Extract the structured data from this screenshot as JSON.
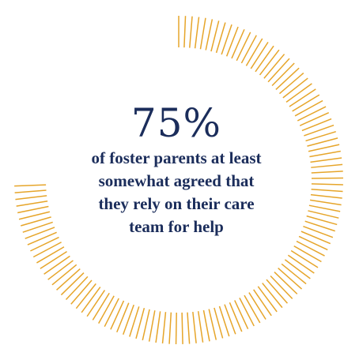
{
  "chart_data": {
    "type": "radial-progress",
    "percent": 75,
    "value_label": "75%",
    "caption_lines": [
      "of foster parents at least",
      "somewhat agreed that",
      "they rely on their care",
      "team for help"
    ]
  },
  "colors": {
    "accent": "#e6a52a",
    "text": "#1b2d5b"
  }
}
